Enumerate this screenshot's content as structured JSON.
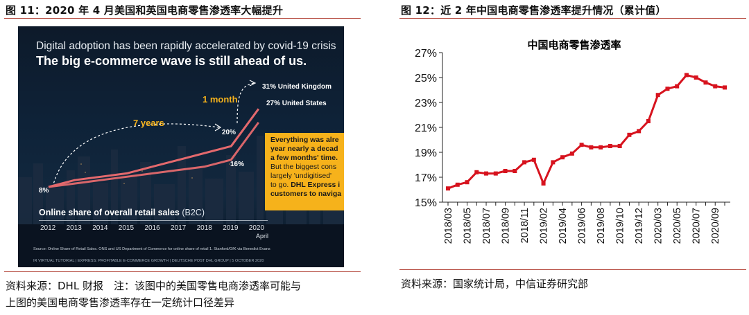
{
  "left_panel": {
    "title": "图 11：2020 年 4 月美国和英国电商零售渗透率大幅提升",
    "source_line1": "资料来源：DHL 财报　注：该图中的美国零售电商渗透率可能与",
    "source_line2": "上图的美国电商零售渗透率存在一定统计口径差异",
    "slide": {
      "headline1": "Digital adoption has been rapidly accelerated by covid-19 crisis",
      "headline2": "The big e-commerce wave is still ahead of us.",
      "label_7years": "7 years",
      "label_1month": "1 month",
      "label_uk": "31% United Kingdom",
      "label_us": "27% United States",
      "label_8": "8%",
      "label_20": "20%",
      "label_16": "16%",
      "callout_l1": "Everything was alre",
      "callout_l2": "year nearly a decad",
      "callout_l3": "a few months' time.",
      "callout_l4": "But the biggest cons",
      "callout_l5": "largely 'undigitised'",
      "callout_l6a": "to go. ",
      "callout_l6b": "DHL Express i",
      "callout_l7": "customers to naviga",
      "axis_title": "Online share of overall retail sales",
      "axis_title_suffix": " (B2C)",
      "years": [
        "2012",
        "2013",
        "2014",
        "2015",
        "2016",
        "2017",
        "2018",
        "2019",
        "2020"
      ],
      "year_2020_sub": "April",
      "source_note": "Source: Online Share of Retail Sales. ONS and US Department of Commerce for online share of retail 1. Stanford/GfK via Benedict Evans",
      "footer_note": "IR VIRTUAL TUTORIAL | EXPRESS: PROFITABLE E-COMMERCE GROWTH | DEUTSCHE POST DHL GROUP | 5 OCTOBER 2020"
    }
  },
  "right_panel": {
    "title": "图 12：近 2 年中国电商零售渗透率提升情况（累计值）",
    "source": "资料来源：国家统计局，中信证券研究部"
  },
  "colors": {
    "series_line": "#d7131e",
    "rule": "#b5483d",
    "slide_line_uk": "#e4696d",
    "slide_line_us": "#e4696d",
    "slide_accent": "#f6b21b"
  },
  "chart_data": [
    {
      "type": "line",
      "title": "",
      "x": [
        "2012",
        "2013",
        "2014",
        "2015",
        "2016",
        "2017",
        "2018",
        "2019",
        "2020 April"
      ],
      "series": [
        {
          "name": "United Kingdom",
          "values": [
            8,
            10,
            11,
            12,
            14,
            16,
            18,
            20,
            31
          ]
        },
        {
          "name": "United States",
          "values": [
            8,
            9,
            10,
            11,
            12,
            13,
            14,
            16,
            27
          ]
        }
      ],
      "ylabel": "",
      "xlabel": "Online share of overall retail sales (B2C)",
      "ylim": [
        0,
        35
      ],
      "grid": false
    },
    {
      "type": "line",
      "title": "中国电商零售渗透率",
      "x": [
        "2018/03",
        "2018/04",
        "2018/05",
        "2018/06",
        "2018/07",
        "2018/08",
        "2018/09",
        "2018/10",
        "2018/11",
        "2018/12",
        "2019/02",
        "2019/03",
        "2019/04",
        "2019/05",
        "2019/06",
        "2019/07",
        "2019/08",
        "2019/09",
        "2019/10",
        "2019/11",
        "2019/12",
        "2020/02",
        "2020/03",
        "2020/04",
        "2020/05",
        "2020/06",
        "2020/07",
        "2020/08",
        "2020/09",
        "2020/10"
      ],
      "x_tick_labels": [
        "2018/03",
        "2018/05",
        "2018/07",
        "2018/09",
        "2018/11",
        "2019/02",
        "2019/04",
        "2019/06",
        "2019/08",
        "2019/10",
        "2019/12",
        "2020/03",
        "2020/05",
        "2020/07",
        "2020/09"
      ],
      "series": [
        {
          "values": [
            16.1,
            16.4,
            16.6,
            17.4,
            17.3,
            17.3,
            17.5,
            17.5,
            18.2,
            18.4,
            16.5,
            18.2,
            18.6,
            18.9,
            19.6,
            19.4,
            19.4,
            19.5,
            19.5,
            20.4,
            20.7,
            21.5,
            23.6,
            24.1,
            24.3,
            25.2,
            25.0,
            24.6,
            24.3,
            24.2
          ]
        }
      ],
      "y_ticks": [
        15,
        17,
        19,
        21,
        23,
        25,
        27
      ],
      "y_tick_labels": [
        "15%",
        "17%",
        "19%",
        "21%",
        "23%",
        "25%",
        "27%"
      ],
      "ylim": [
        15,
        27
      ],
      "xlabel": "",
      "ylabel": "",
      "grid": false
    }
  ]
}
